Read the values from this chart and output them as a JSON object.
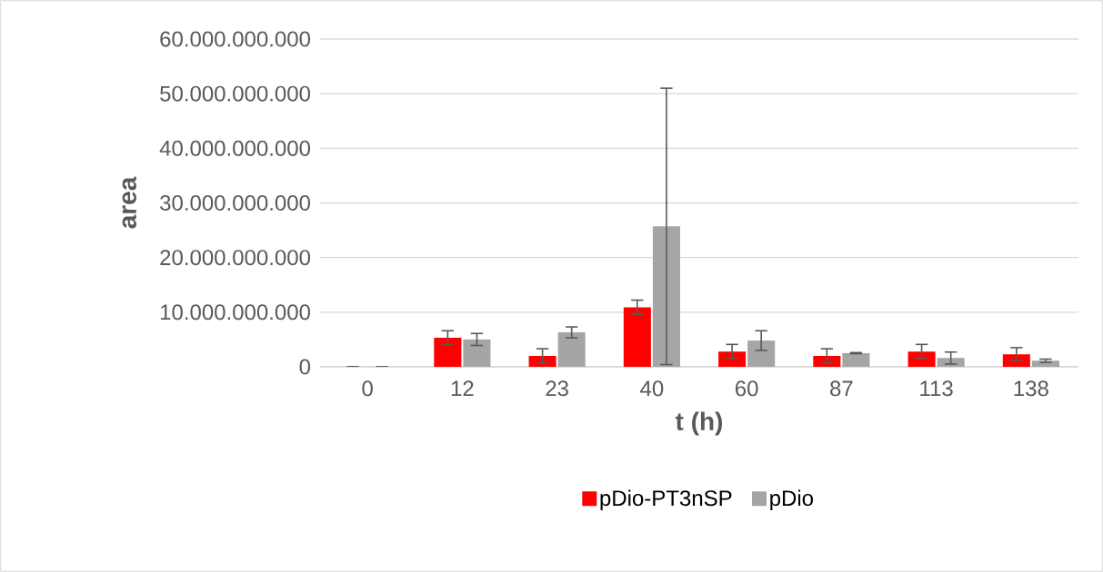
{
  "chart_data": {
    "type": "bar",
    "xlabel": "t (h)",
    "ylabel": "area",
    "categories": [
      "0",
      "12",
      "23",
      "40",
      "60",
      "87",
      "113",
      "138"
    ],
    "series": [
      {
        "name": "pDio-PT3nSP",
        "color": "#ff0000",
        "values": [
          0,
          5300000000,
          2000000000,
          10900000000,
          2800000000,
          2000000000,
          2800000000,
          2300000000
        ],
        "errors": [
          null,
          1300000000,
          1300000000,
          1300000000,
          1300000000,
          1300000000,
          1300000000,
          1200000000
        ]
      },
      {
        "name": "pDio",
        "color": "#a5a5a5",
        "values": [
          0,
          5000000000,
          6300000000,
          25700000000,
          4800000000,
          2500000000,
          1600000000,
          1100000000
        ],
        "errors": [
          null,
          1100000000,
          1000000000,
          25300000000,
          1800000000,
          100000000,
          1100000000,
          300000000
        ]
      }
    ],
    "ylim": [
      0,
      60000000000
    ],
    "yticks": [
      0,
      {
        "value": 10000000000,
        "label": "10.000.000.000"
      },
      {
        "value": 20000000000,
        "label": "20.000.000.000"
      },
      {
        "value": 30000000000,
        "label": "30.000.000.000"
      },
      {
        "value": 40000000000,
        "label": "40.000.000.000"
      },
      {
        "value": 50000000000,
        "label": "50.000.000.000"
      },
      {
        "value": 60000000000,
        "label": "60.000.000.000"
      }
    ],
    "grid": "y",
    "legend": "bottom"
  }
}
